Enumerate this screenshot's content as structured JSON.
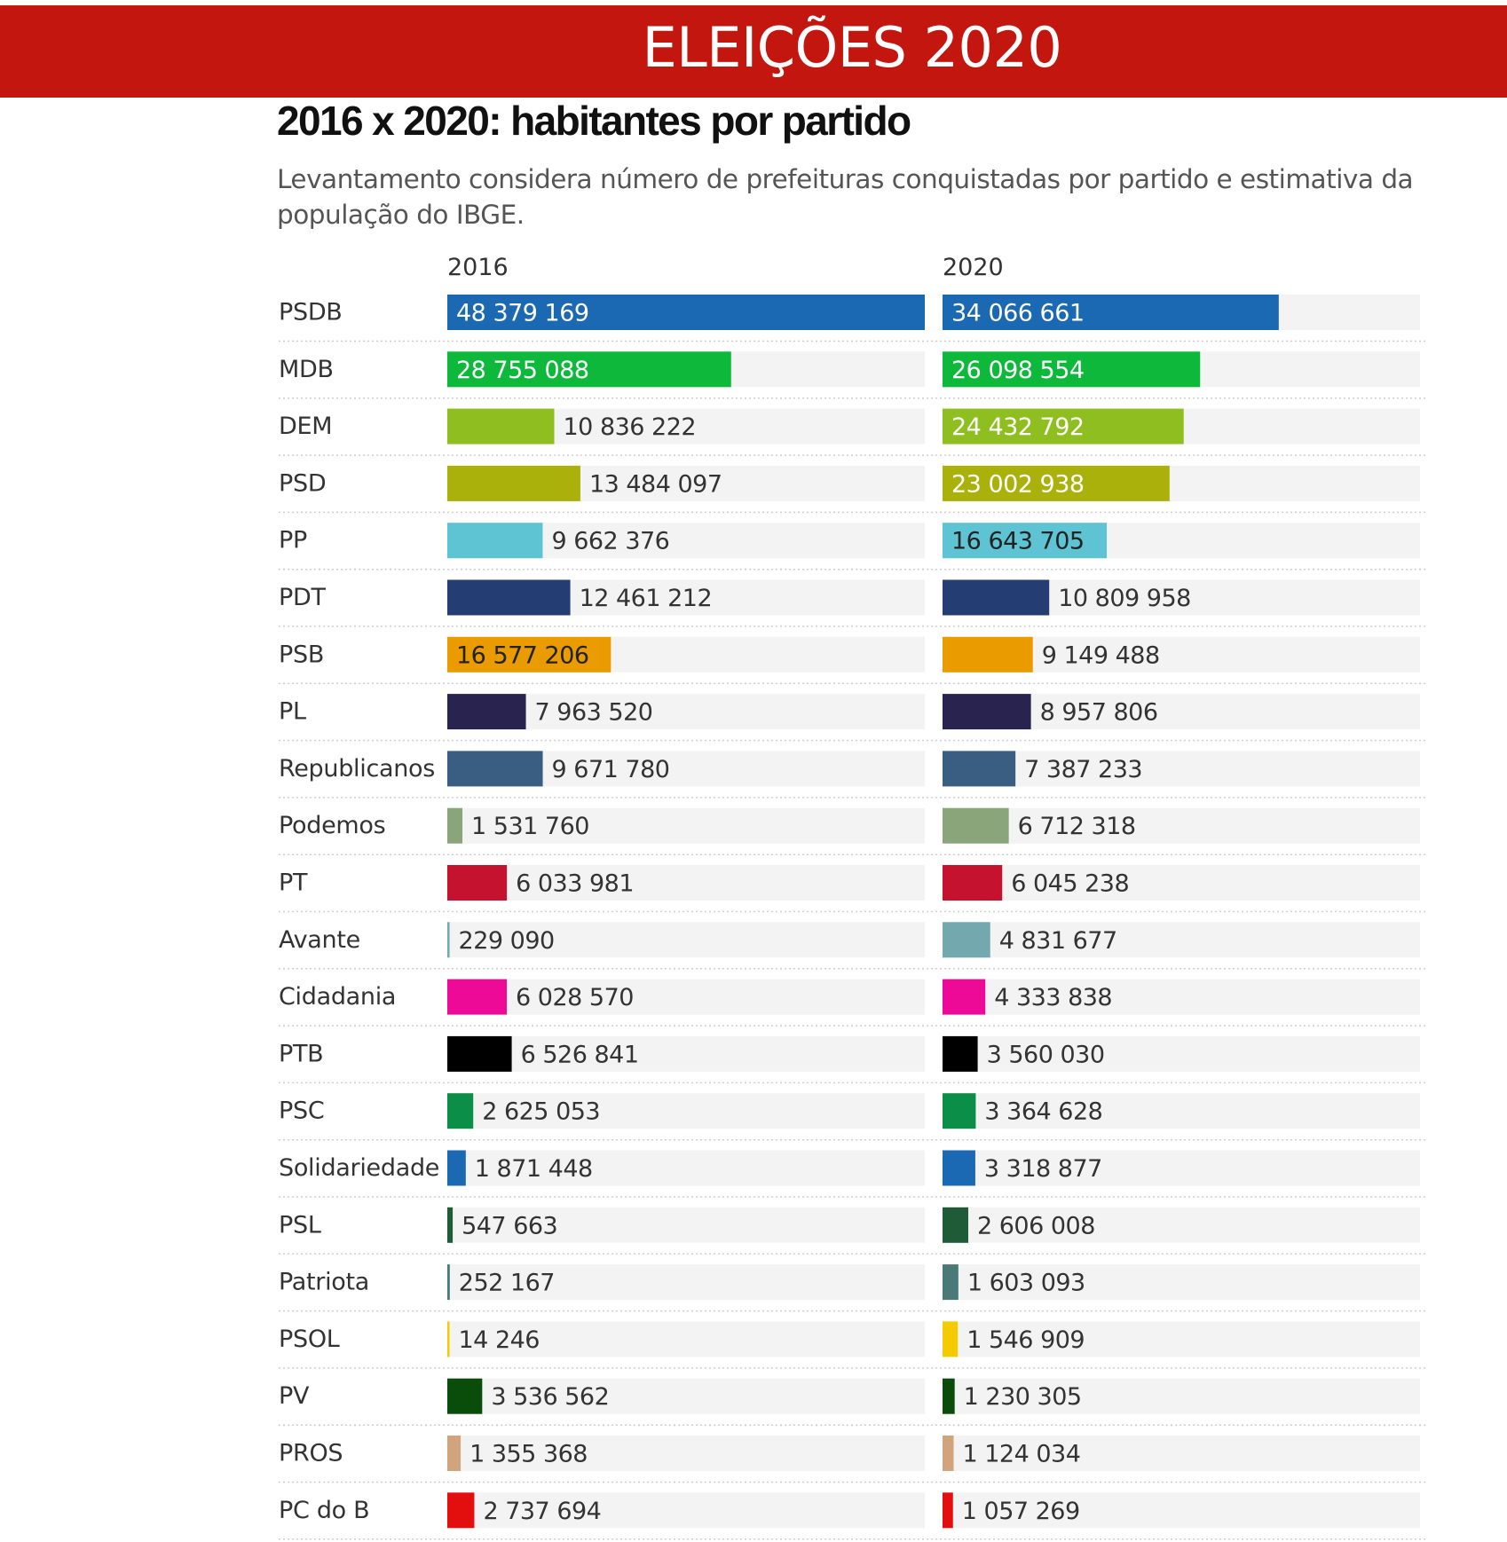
{
  "header": {
    "banner": "ELEIÇÕES 2020",
    "banner_color": "#c2160f"
  },
  "chart_data": {
    "type": "bar",
    "title": "2016 x 2020: habitantes por partido",
    "subtitle": "Levantamento considera número de prefeituras conquistadas por partido e estimativa da população do IBGE.",
    "columns": [
      "2016",
      "2020"
    ],
    "categories": [
      "PSDB",
      "MDB",
      "DEM",
      "PSD",
      "PP",
      "PDT",
      "PSB",
      "PL",
      "Republicanos",
      "Podemos",
      "PT",
      "Avante",
      "Cidadania",
      "PTB",
      "PSC",
      "Solidariedade",
      "PSL",
      "Patriota",
      "PSOL",
      "PV",
      "PROS",
      "PC do B"
    ],
    "series": [
      {
        "name": "2016",
        "values": [
          48379169,
          28755088,
          10836222,
          13484097,
          9662376,
          12461212,
          16577206,
          7963520,
          9671780,
          1531760,
          6033981,
          229090,
          6028570,
          6526841,
          2625053,
          1871448,
          547663,
          252167,
          14246,
          3536562,
          1355368,
          2737694
        ],
        "labels": [
          "48 379 169",
          "28 755 088",
          "10 836 222",
          "13 484 097",
          "9 662 376",
          "12 461 212",
          "16 577 206",
          "7 963 520",
          "9 671 780",
          "1 531 760",
          "6 033 981",
          "229 090",
          "6 028 570",
          "6 526 841",
          "2 625 053",
          "1 871 448",
          "547 663",
          "252 167",
          "14 246",
          "3 536 562",
          "1 355 368",
          "2 737 694"
        ]
      },
      {
        "name": "2020",
        "values": [
          34066661,
          26098554,
          24432792,
          23002938,
          16643705,
          10809958,
          9149488,
          8957806,
          7387233,
          6712318,
          6045238,
          4831677,
          4333838,
          3560030,
          3364628,
          3318877,
          2606008,
          1603093,
          1546909,
          1230305,
          1124034,
          1057269
        ],
        "labels": [
          "34 066 661",
          "26 098 554",
          "24 432 792",
          "23 002 938",
          "16 643 705",
          "10 809 958",
          "9 149 488",
          "8 957 806",
          "7 387 233",
          "6 712 318",
          "6 045 238",
          "4 831 677",
          "4 333 838",
          "3 560 030",
          "3 364 628",
          "3 318 877",
          "2 606 008",
          "1 603 093",
          "1 546 909",
          "1 230 305",
          "1 124 034",
          "1 057 269"
        ]
      }
    ],
    "colors": [
      "#1b68b3",
      "#0db83a",
      "#8fbe20",
      "#aab10a",
      "#5ec3d2",
      "#243d72",
      "#e99b00",
      "#29244f",
      "#3a5e82",
      "#8aa57a",
      "#c4122f",
      "#73a8ae",
      "#ec0a96",
      "#000000",
      "#0b8e48",
      "#1b68b3",
      "#1e5b36",
      "#4a7a78",
      "#f3cb00",
      "#0a4c0a",
      "#d2a47e",
      "#e30f0f"
    ],
    "xlim": [
      0,
      48379169
    ],
    "grid": false,
    "legend": "none"
  }
}
